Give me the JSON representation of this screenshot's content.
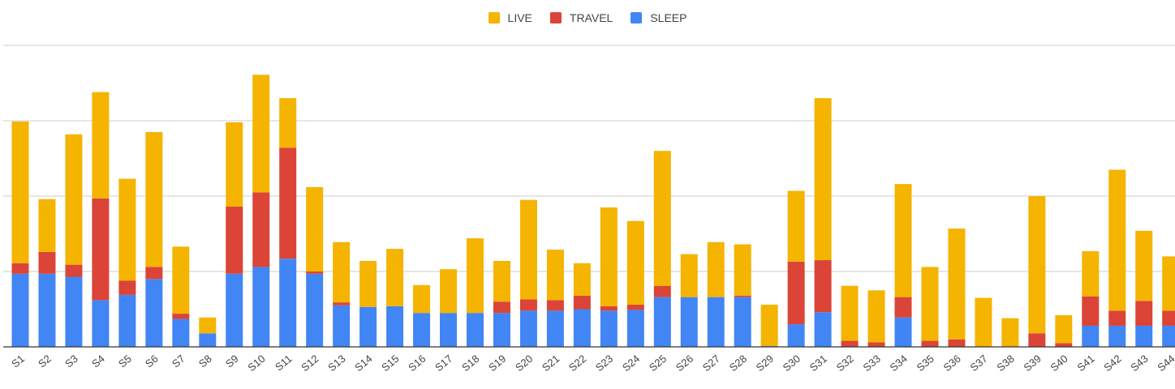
{
  "chart_data": {
    "type": "bar",
    "stacked": true,
    "categories": [
      "S1",
      "S2",
      "S3",
      "S4",
      "S5",
      "S6",
      "S7",
      "S8",
      "S9",
      "S10",
      "S11",
      "S12",
      "S13",
      "S14",
      "S15",
      "S16",
      "S17",
      "S18",
      "S19",
      "S20",
      "S21",
      "S22",
      "S23",
      "S24",
      "S25",
      "S26",
      "S27",
      "S28",
      "S29",
      "S30",
      "S31",
      "S32",
      "S33",
      "S34",
      "S35",
      "S36",
      "S37",
      "S38",
      "S39",
      "S40",
      "S41",
      "S42",
      "S43",
      "S44"
    ],
    "series": [
      {
        "name": "SLEEP",
        "color": "#4285F4",
        "values": [
          97,
          97,
          93,
          62,
          69,
          90,
          37,
          18,
          97,
          106,
          117,
          97,
          55,
          53,
          54,
          45,
          45,
          45,
          45,
          48,
          48,
          50,
          48,
          49,
          66,
          66,
          66,
          66,
          1,
          30,
          46,
          0,
          0,
          39,
          0,
          0,
          0,
          0,
          0,
          0,
          28,
          28,
          28,
          28
        ]
      },
      {
        "name": "TRAVEL",
        "color": "#DB4437",
        "values": [
          14,
          29,
          16,
          135,
          19,
          16,
          7,
          0,
          89,
          99,
          147,
          3,
          4,
          0,
          0,
          0,
          0,
          0,
          15,
          15,
          14,
          18,
          6,
          7,
          15,
          0,
          0,
          2,
          0,
          83,
          69,
          8,
          6,
          27,
          8,
          10,
          0,
          0,
          18,
          5,
          39,
          20,
          33,
          20
        ]
      },
      {
        "name": "LIVE",
        "color": "#F4B400",
        "values": [
          188,
          70,
          173,
          141,
          135,
          179,
          89,
          21,
          112,
          156,
          66,
          112,
          80,
          61,
          76,
          37,
          58,
          99,
          54,
          132,
          67,
          43,
          131,
          111,
          179,
          57,
          73,
          68,
          55,
          94,
          215,
          73,
          69,
          150,
          98,
          147,
          65,
          38,
          182,
          37,
          60,
          187,
          93,
          72
        ]
      }
    ],
    "legend": [
      "LIVE",
      "TRAVEL",
      "SLEEP"
    ],
    "legend_position": "top",
    "ylim": [
      0,
      400
    ],
    "gridlines": [
      100,
      200,
      300,
      400
    ],
    "grid": true,
    "title": "",
    "xlabel": "",
    "ylabel": ""
  }
}
